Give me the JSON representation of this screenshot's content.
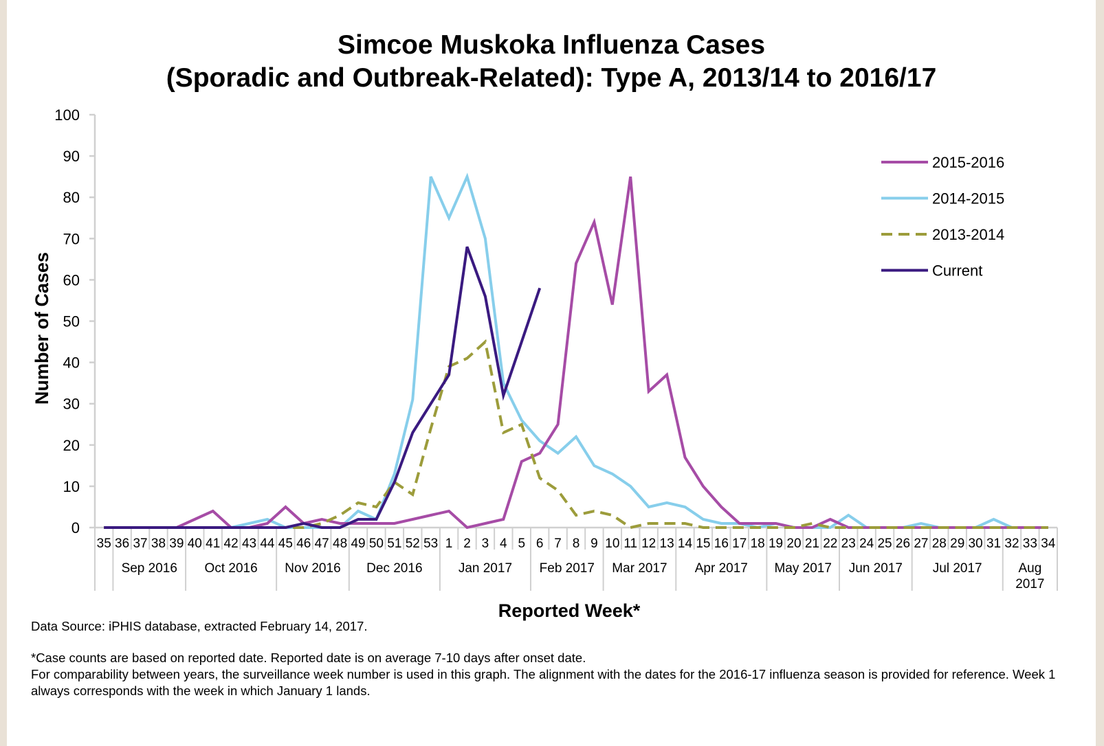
{
  "chart_data": {
    "type": "line",
    "title": "Simcoe Muskoka Influenza Cases",
    "subtitle": "(Sporadic and Outbreak-Related): Type A, 2013/14 to 2016/17",
    "xlabel": "Reported Week*",
    "ylabel": "Number of Cases",
    "ylim": [
      0,
      100
    ],
    "yticks": [
      0,
      10,
      20,
      30,
      40,
      50,
      60,
      70,
      80,
      90,
      100
    ],
    "grid": false,
    "legend_position": "top-right",
    "categories": [
      "35",
      "36",
      "37",
      "38",
      "39",
      "40",
      "41",
      "42",
      "43",
      "44",
      "45",
      "46",
      "47",
      "48",
      "49",
      "50",
      "51",
      "52",
      "53",
      "1",
      "2",
      "3",
      "4",
      "5",
      "6",
      "7",
      "8",
      "9",
      "10",
      "11",
      "12",
      "13",
      "14",
      "15",
      "16",
      "17",
      "18",
      "19",
      "20",
      "21",
      "22",
      "23",
      "24",
      "25",
      "26",
      "27",
      "28",
      "29",
      "30",
      "31",
      "32",
      "33",
      "34"
    ],
    "months": [
      {
        "label": "Sep 2016",
        "label2": ""
      },
      {
        "label": "Oct 2016",
        "label2": ""
      },
      {
        "label": "Nov 2016",
        "label2": ""
      },
      {
        "label": "Dec 2016",
        "label2": ""
      },
      {
        "label": "Jan 2017",
        "label2": ""
      },
      {
        "label": "Feb 2017",
        "label2": ""
      },
      {
        "label": "Mar 2017",
        "label2": ""
      },
      {
        "label": "Apr 2017",
        "label2": ""
      },
      {
        "label": "May 2017",
        "label2": ""
      },
      {
        "label": "Jun 2017",
        "label2": ""
      },
      {
        "label": "Jul 2017",
        "label2": ""
      },
      {
        "label": "Aug",
        "label2": "2017"
      }
    ],
    "series": [
      {
        "name": "2015-2016",
        "color": "#a64ca6",
        "dash": "solid",
        "values": [
          0,
          0,
          0,
          0,
          0,
          2,
          4,
          0,
          0,
          1,
          5,
          1,
          2,
          1,
          1,
          1,
          1,
          2,
          3,
          4,
          0,
          1,
          2,
          16,
          18,
          25,
          64,
          74,
          54,
          85,
          33,
          37,
          17,
          10,
          5,
          1,
          1,
          1,
          0,
          0,
          2,
          0,
          0,
          0,
          0,
          0,
          0,
          0,
          0,
          0,
          0,
          0,
          0
        ]
      },
      {
        "name": "2014-2015",
        "color": "#87ceeb",
        "dash": "solid",
        "values": [
          0,
          0,
          0,
          0,
          0,
          0,
          0,
          0,
          1,
          2,
          0,
          0,
          0,
          0,
          4,
          2,
          13,
          31,
          85,
          75,
          85,
          70,
          35,
          26,
          21,
          18,
          22,
          15,
          13,
          10,
          5,
          6,
          5,
          2,
          1,
          1,
          0,
          1,
          0,
          0,
          0,
          3,
          0,
          0,
          0,
          1,
          0,
          0,
          0,
          2,
          0,
          0,
          0
        ]
      },
      {
        "name": "2013-2014",
        "color": "#9c9c3b",
        "dash": "dashed",
        "values": [
          0,
          0,
          0,
          0,
          0,
          0,
          0,
          0,
          0,
          0,
          0,
          0,
          1,
          3,
          6,
          5,
          11,
          8,
          24,
          39,
          41,
          45,
          23,
          25,
          12,
          9,
          3,
          4,
          3,
          0,
          1,
          1,
          1,
          0,
          0,
          0,
          0,
          0,
          0,
          1,
          0,
          0,
          0,
          0,
          0,
          0,
          0,
          0,
          0,
          0,
          0,
          0,
          0
        ]
      },
      {
        "name": "Current",
        "color": "#3a1a80",
        "dash": "solid",
        "values": [
          0,
          0,
          0,
          0,
          0,
          0,
          0,
          0,
          0,
          0,
          0,
          1,
          0,
          0,
          2,
          2,
          11,
          23,
          30,
          37,
          68,
          56,
          32,
          45,
          58,
          null,
          null,
          null,
          null,
          null,
          null,
          null,
          null,
          null,
          null,
          null,
          null,
          null,
          null,
          null,
          null,
          null,
          null,
          null,
          null,
          null,
          null,
          null,
          null,
          null,
          null,
          null,
          null
        ]
      }
    ]
  },
  "notes": {
    "source": "Data Source: iPHIS database, extracted February 14, 2017.",
    "footnote1": "*Case counts are based on reported date. Reported date is on average 7-10 days after onset date.",
    "footnote2": "For comparability between years, the surveillance week number is used in this graph. The alignment with the dates for the 2016-17 influenza season is provided for reference. Week 1 always corresponds with the week in which January 1 lands."
  }
}
